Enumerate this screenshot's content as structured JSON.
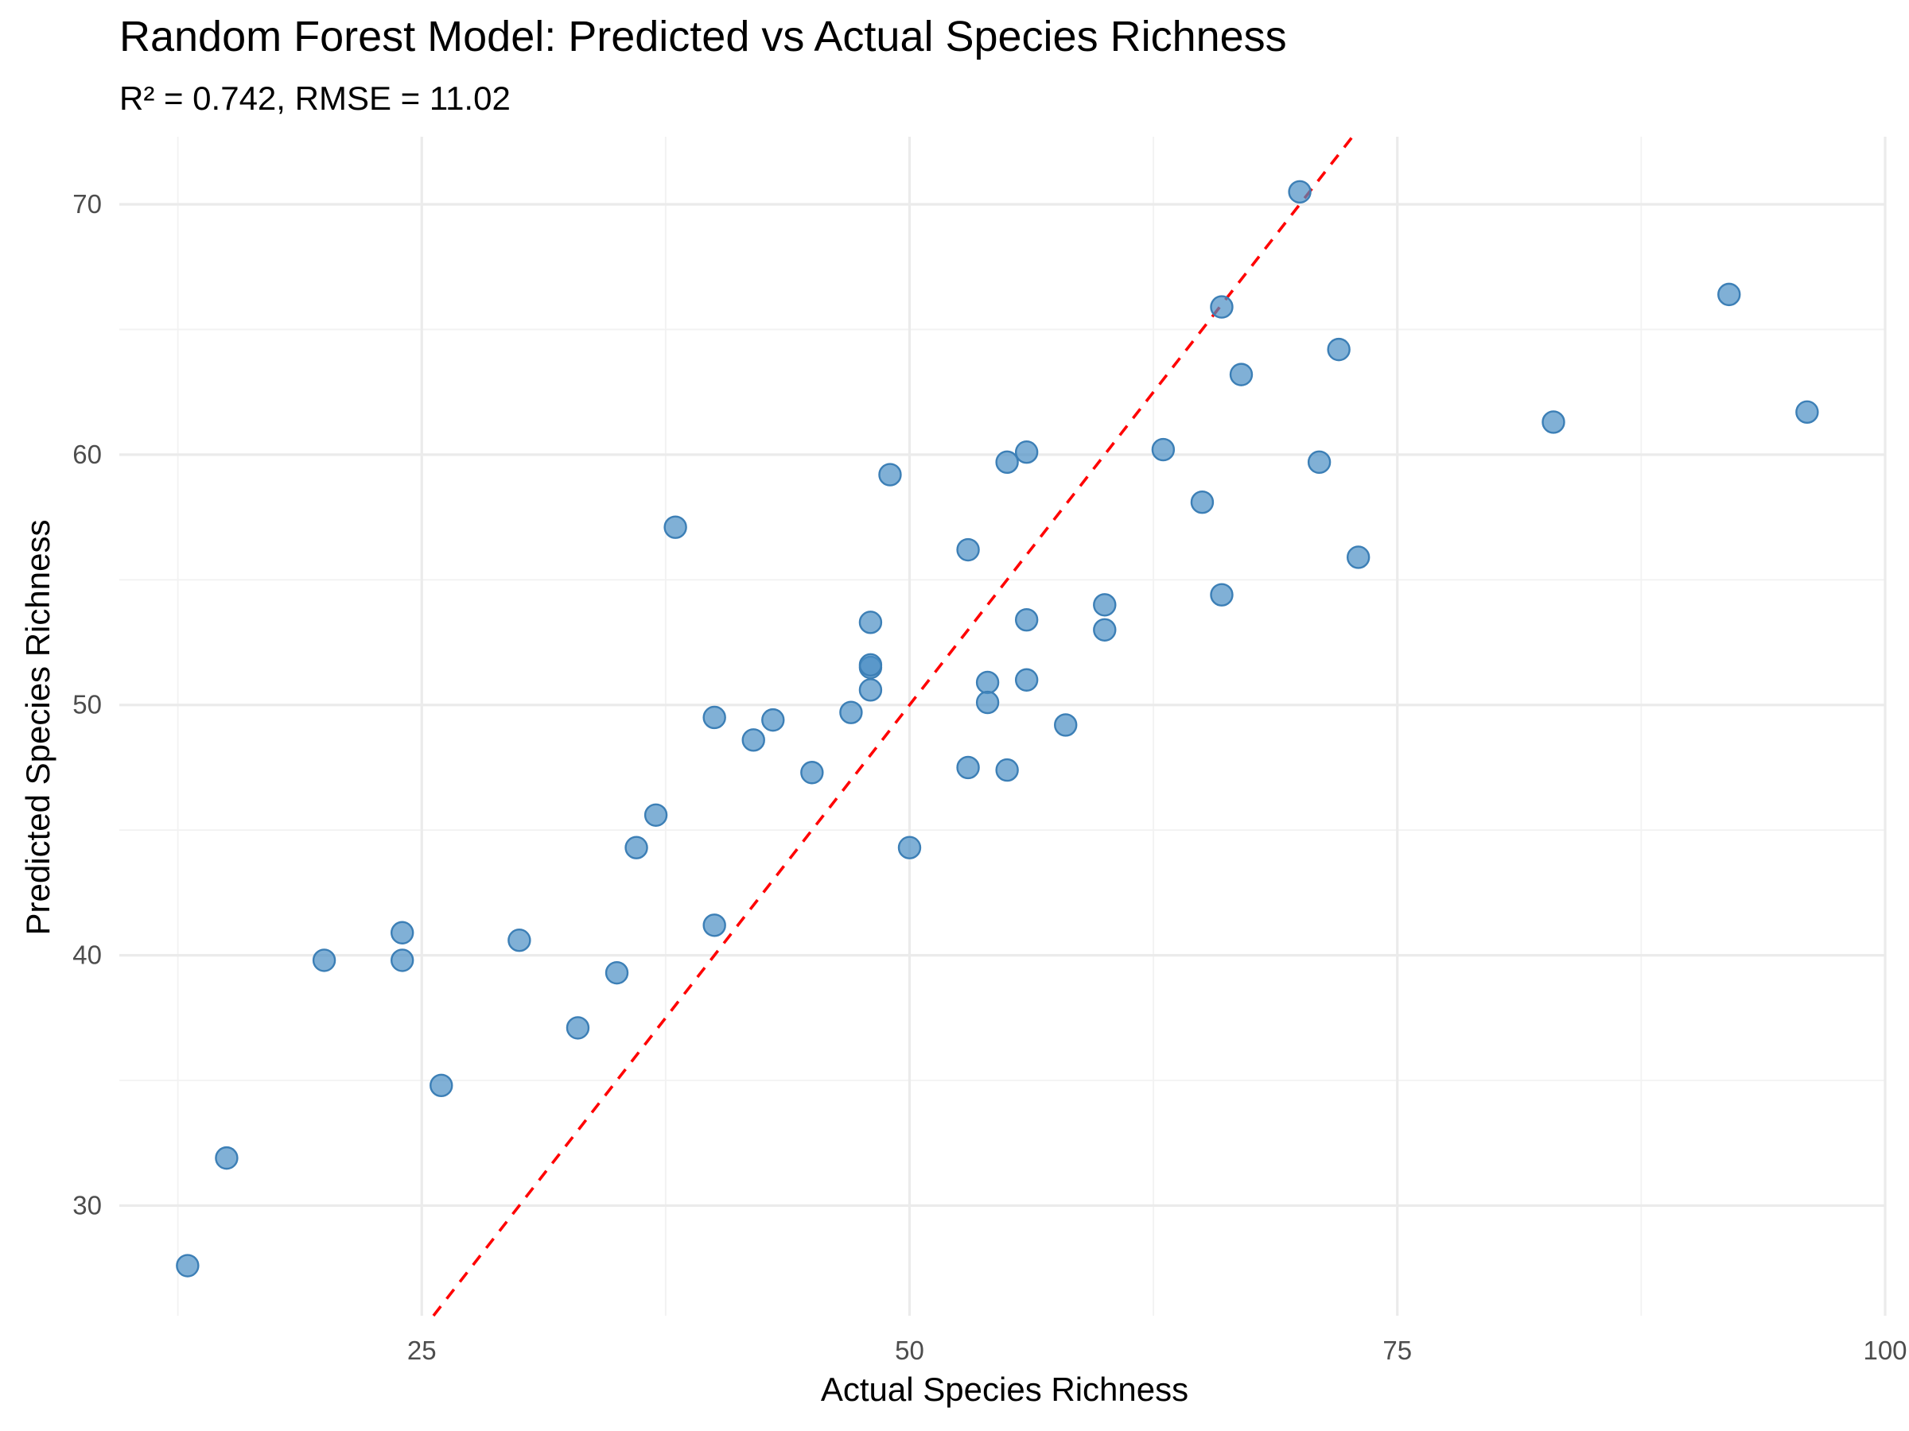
{
  "chart_data": {
    "type": "scatter",
    "title": "Random Forest Model: Predicted vs Actual Species Richness",
    "subtitle": "R² = 0.742, RMSE = 11.02",
    "xlabel": "Actual Species Richness",
    "ylabel": "Predicted Species Richness",
    "xlim": [
      9.5,
      100
    ],
    "ylim": [
      25.6,
      72.7
    ],
    "x_ticks": [
      25,
      50,
      75,
      100
    ],
    "x_minor_ticks": [
      12.5,
      37.5,
      62.5,
      87.5
    ],
    "y_ticks": [
      30,
      40,
      50,
      60,
      70
    ],
    "y_minor_ticks": [
      35,
      45,
      55,
      65
    ],
    "grid": true,
    "legend": "none",
    "point_color": "#4a8fc4",
    "reference_line": {
      "type": "y=x",
      "color": "#ff0000",
      "style": "dashed"
    },
    "points": [
      {
        "x": 13,
        "y": 27.6
      },
      {
        "x": 15,
        "y": 31.9
      },
      {
        "x": 20,
        "y": 39.8
      },
      {
        "x": 24,
        "y": 40.9
      },
      {
        "x": 24,
        "y": 39.8
      },
      {
        "x": 26,
        "y": 34.8
      },
      {
        "x": 30,
        "y": 40.6
      },
      {
        "x": 33,
        "y": 37.1
      },
      {
        "x": 35,
        "y": 39.3
      },
      {
        "x": 36,
        "y": 44.3
      },
      {
        "x": 37,
        "y": 45.6
      },
      {
        "x": 38,
        "y": 57.1
      },
      {
        "x": 40,
        "y": 49.5
      },
      {
        "x": 40,
        "y": 41.2
      },
      {
        "x": 42,
        "y": 48.6
      },
      {
        "x": 43,
        "y": 49.4
      },
      {
        "x": 45,
        "y": 47.3
      },
      {
        "x": 47,
        "y": 49.7
      },
      {
        "x": 48,
        "y": 53.3
      },
      {
        "x": 48,
        "y": 51.5
      },
      {
        "x": 48,
        "y": 51.6
      },
      {
        "x": 48,
        "y": 50.6
      },
      {
        "x": 49,
        "y": 59.2
      },
      {
        "x": 50,
        "y": 44.3
      },
      {
        "x": 53,
        "y": 56.2
      },
      {
        "x": 53,
        "y": 47.5
      },
      {
        "x": 54,
        "y": 50.9
      },
      {
        "x": 54,
        "y": 50.1
      },
      {
        "x": 55,
        "y": 59.7
      },
      {
        "x": 55,
        "y": 47.4
      },
      {
        "x": 56,
        "y": 60.1
      },
      {
        "x": 56,
        "y": 53.4
      },
      {
        "x": 56,
        "y": 51.0
      },
      {
        "x": 58,
        "y": 49.2
      },
      {
        "x": 60,
        "y": 54.0
      },
      {
        "x": 60,
        "y": 53.0
      },
      {
        "x": 63,
        "y": 60.2
      },
      {
        "x": 65,
        "y": 58.1
      },
      {
        "x": 66,
        "y": 65.9
      },
      {
        "x": 66,
        "y": 54.4
      },
      {
        "x": 67,
        "y": 63.2
      },
      {
        "x": 70,
        "y": 70.5
      },
      {
        "x": 71,
        "y": 59.7
      },
      {
        "x": 72,
        "y": 64.2
      },
      {
        "x": 73,
        "y": 55.9
      },
      {
        "x": 83,
        "y": 61.3
      },
      {
        "x": 92,
        "y": 66.4
      },
      {
        "x": 96,
        "y": 61.7
      }
    ]
  }
}
